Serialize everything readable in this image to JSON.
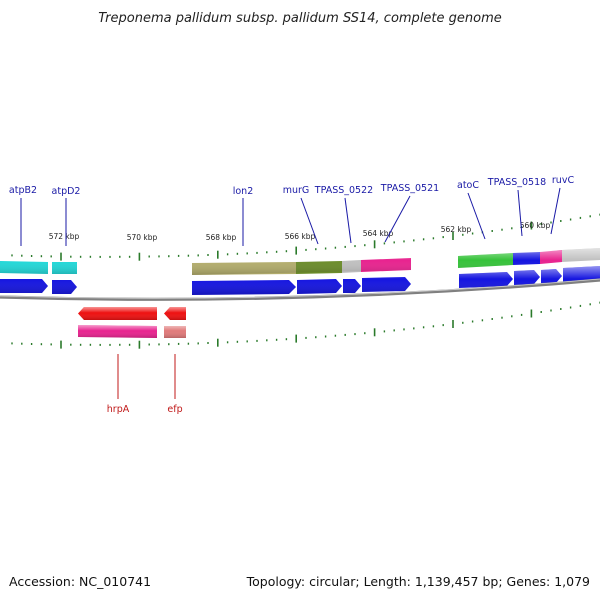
{
  "title": "Treponema pallidum subsp. pallidum SS14, complete genome",
  "footer": {
    "accession": "Accession: NC_010741",
    "summary": "Topology: circular; Length: 1,139,457 bp; Genes: 1,079"
  },
  "ruler": {
    "unit": "kbp",
    "labels": [
      "572 kbp",
      "570 kbp",
      "568 kbp",
      "566 kbp",
      "564 kbp",
      "562 kbp",
      "560 kbp"
    ]
  },
  "genes_forward_strand": [
    {
      "label": "atpB2",
      "color": "#1515e0"
    },
    {
      "label": "atpD2",
      "color": "#1515e0"
    },
    {
      "label": "lon2",
      "color": "#1515e0"
    },
    {
      "label": "murG",
      "color": "#1515e0"
    },
    {
      "label": "TPASS_0522",
      "color": "#1515e0"
    },
    {
      "label": "TPASS_0521",
      "color": "#1515e0"
    },
    {
      "label": "atoC",
      "color": "#1515e0"
    },
    {
      "label": "TPASS_0518",
      "color": "#1515e0"
    },
    {
      "label": "ruvC",
      "color": "#1515e0"
    }
  ],
  "genes_reverse_strand": [
    {
      "label": "hrpA",
      "color": "#ee1111"
    },
    {
      "label": "efp",
      "color": "#ee1111"
    }
  ],
  "cog_colors": {
    "cyan": "#22d8d8",
    "olive": "#b3ad6c",
    "dark_olive": "#6b8c2a",
    "gray": "#c0c0c0",
    "magenta": "#e8238f",
    "green": "#36c23a",
    "salmon": "#e07a7a"
  },
  "backbone_color": "#808080",
  "tick_color": "#2a7a2a"
}
